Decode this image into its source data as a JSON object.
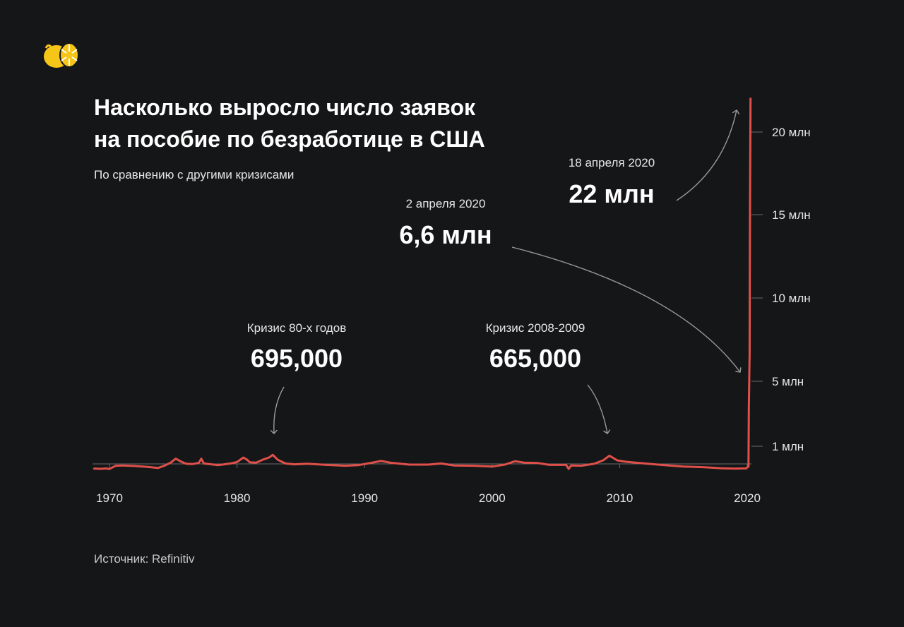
{
  "header": {
    "logo_icon": "lemon-icon",
    "title_line1": "Насколько выросло число заявок",
    "title_line2": "на пособие по безработице в США",
    "subtitle": "По сравнению с другими кризисами"
  },
  "footer": {
    "source": "Источник: Refinitiv"
  },
  "colors": {
    "background": "#151618",
    "line": "#e0504a",
    "accent": "#f5c518"
  },
  "chart_data": {
    "type": "line",
    "title": "Насколько выросло число заявок на пособие по безработице в США",
    "subtitle": "По сравнению с другими кризисами",
    "xlim": [
      1968.8,
      2020.3
    ],
    "ylim": [
      0,
      22500000
    ],
    "x_ticks": [
      {
        "value": 1970,
        "label": "1970"
      },
      {
        "value": 1980,
        "label": "1980"
      },
      {
        "value": 1990,
        "label": "1990"
      },
      {
        "value": 2000,
        "label": "2000"
      },
      {
        "value": 2010,
        "label": "2010"
      },
      {
        "value": 2020,
        "label": "2020"
      }
    ],
    "y_ticks": [
      {
        "value": 1000000,
        "label": "1 млн"
      },
      {
        "value": 5000000,
        "label": "5 млн"
      },
      {
        "value": 10000000,
        "label": "10 млн"
      },
      {
        "value": 15000000,
        "label": "15 млн"
      },
      {
        "value": 20000000,
        "label": "20 млн"
      }
    ],
    "series": [
      {
        "points": [
          [
            1968.8,
            210000
          ],
          [
            1969.3,
            200000
          ],
          [
            1969.7,
            215000
          ],
          [
            1970.0,
            195000
          ],
          [
            1970.5,
            310000
          ],
          [
            1971.0,
            320000
          ],
          [
            1972.0,
            300000
          ],
          [
            1973.0,
            270000
          ],
          [
            1973.8,
            230000
          ],
          [
            1974.3,
            310000
          ],
          [
            1974.8,
            420000
          ],
          [
            1975.2,
            560000
          ],
          [
            1975.6,
            460000
          ],
          [
            1976.0,
            380000
          ],
          [
            1976.5,
            370000
          ],
          [
            1977.0,
            410000
          ],
          [
            1977.2,
            560000
          ],
          [
            1977.4,
            390000
          ],
          [
            1978.0,
            360000
          ],
          [
            1978.5,
            330000
          ],
          [
            1979.0,
            360000
          ],
          [
            1979.5,
            390000
          ],
          [
            1980.0,
            440000
          ],
          [
            1980.5,
            600000
          ],
          [
            1980.8,
            520000
          ],
          [
            1981.0,
            430000
          ],
          [
            1981.5,
            420000
          ],
          [
            1982.0,
            520000
          ],
          [
            1982.5,
            600000
          ],
          [
            1982.8,
            695000
          ],
          [
            1983.2,
            520000
          ],
          [
            1983.8,
            390000
          ],
          [
            1984.5,
            360000
          ],
          [
            1985.5,
            380000
          ],
          [
            1987.0,
            340000
          ],
          [
            1988.5,
            310000
          ],
          [
            1989.5,
            330000
          ],
          [
            1990.5,
            410000
          ],
          [
            1991.3,
            480000
          ],
          [
            1992.0,
            420000
          ],
          [
            1993.5,
            350000
          ],
          [
            1995.0,
            350000
          ],
          [
            1996.0,
            390000
          ],
          [
            1997.0,
            320000
          ],
          [
            1998.5,
            310000
          ],
          [
            2000.0,
            280000
          ],
          [
            2001.0,
            350000
          ],
          [
            2001.8,
            470000
          ],
          [
            2002.5,
            420000
          ],
          [
            2003.5,
            410000
          ],
          [
            2004.5,
            340000
          ],
          [
            2005.8,
            340000
          ],
          [
            2006.0,
            200000
          ],
          [
            2006.2,
            320000
          ],
          [
            2007.0,
            310000
          ],
          [
            2008.0,
            380000
          ],
          [
            2008.7,
            500000
          ],
          [
            2009.2,
            665000
          ],
          [
            2009.8,
            500000
          ],
          [
            2010.5,
            450000
          ],
          [
            2011.5,
            410000
          ],
          [
            2012.5,
            370000
          ],
          [
            2013.5,
            330000
          ],
          [
            2015.0,
            280000
          ],
          [
            2016.5,
            260000
          ],
          [
            2018.0,
            220000
          ],
          [
            2019.0,
            210000
          ],
          [
            2019.9,
            215000
          ],
          [
            2020.1,
            282000
          ],
          [
            2020.13,
            3300000
          ],
          [
            2020.17,
            5800000
          ],
          [
            2020.19,
            6600000
          ],
          [
            2020.22,
            16000000
          ],
          [
            2020.26,
            22000000
          ]
        ]
      }
    ],
    "annotations": [
      {
        "id": "crisis-80s",
        "caption": "Кризис 80-х годов",
        "value": "695,000",
        "x": 1982.8,
        "y": 695000
      },
      {
        "id": "crisis-2008",
        "caption": "Кризис 2008-2009",
        "value": "665,000",
        "x": 2009.2,
        "y": 665000
      },
      {
        "id": "april-2",
        "caption": "2 апреля 2020",
        "value": "6,6 млн",
        "x": 2020.19,
        "y": 6600000
      },
      {
        "id": "april-18",
        "caption": "18 апреля 2020",
        "value": "22 млн",
        "x": 2020.26,
        "y": 22000000
      }
    ],
    "grid": false
  }
}
